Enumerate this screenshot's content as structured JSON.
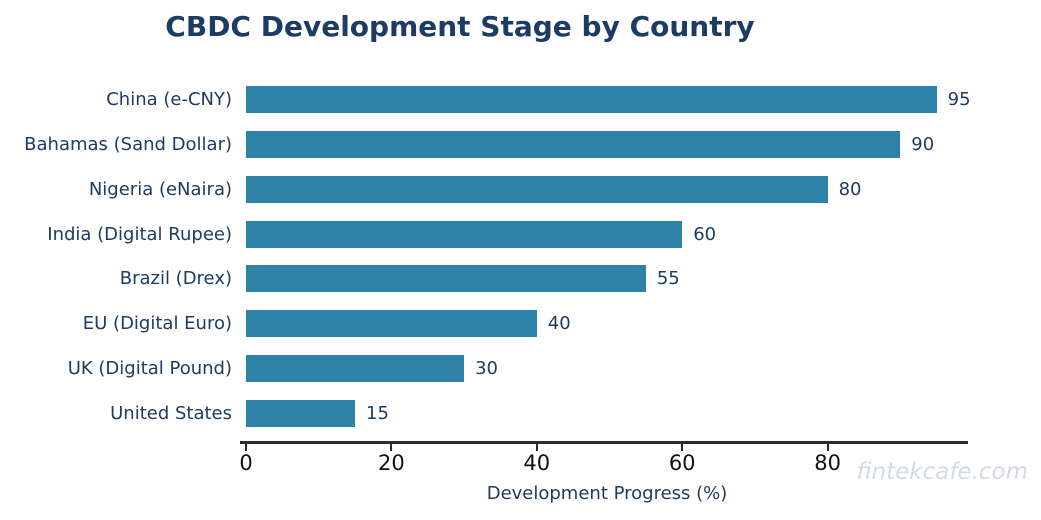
{
  "title": "CBDC Development Stage by Country",
  "watermark": "fintekcafe.com",
  "chart_data": {
    "type": "bar",
    "orientation": "horizontal",
    "title": "CBDC Development Stage by Country",
    "categories": [
      "China (e-CNY)",
      "Bahamas (Sand Dollar)",
      "Nigeria (eNaira)",
      "India (Digital Rupee)",
      "Brazil (Drex)",
      "EU (Digital Euro)",
      "UK (Digital Pound)",
      "United States"
    ],
    "values": [
      95,
      90,
      80,
      60,
      55,
      40,
      30,
      15
    ],
    "value_labels": [
      "95",
      "90",
      "80",
      "60",
      "55",
      "40",
      "30",
      "15"
    ],
    "xlabel": "Development Progress (%)",
    "ylabel": "",
    "xticks": [
      0,
      20,
      40,
      60,
      80
    ],
    "xtick_labels": [
      "0",
      "20",
      "40",
      "60",
      "80"
    ],
    "xlim": [
      0,
      99.5
    ],
    "grid": false,
    "legend": false,
    "colors": {
      "bar": "#2E82A8",
      "title_text": "#1C3C63",
      "category_text": "#1C3C63",
      "value_text": "#1C3C63",
      "axis_label_text": "#1C3C63",
      "tick_text": "#111111",
      "axis_line": "#2A2A2A",
      "watermark_text": "#D4DAE3",
      "background": "#FFFFFF"
    }
  }
}
